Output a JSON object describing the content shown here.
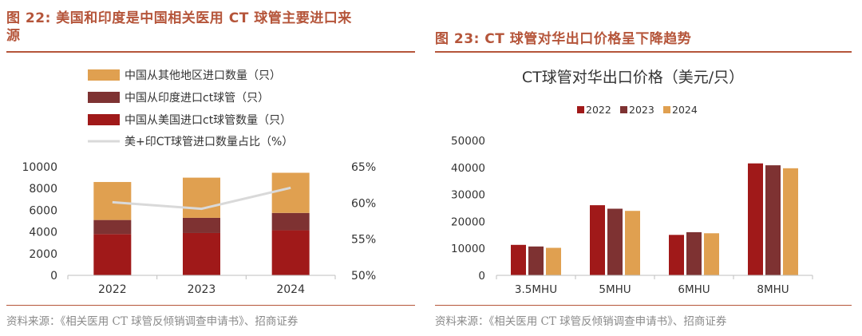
{
  "left_figure": {
    "label": "图 22:",
    "title": "美国和印度是中国相关医用 CT 球管主要进口来源",
    "title_line1": "美国和印度是中国相关医用 CT 球管主要进口来",
    "title_line2": "源",
    "source": "资料来源：《相关医用 CT 球管反倾销调查申请书》、招商证券"
  },
  "right_figure": {
    "label": "图 23:",
    "title": "CT 球管对华出口价格呈下降趋势",
    "source": "资料来源：《相关医用 CT 球管反倾销调查申请书》、招商证券"
  },
  "chart_data": [
    {
      "type": "bar",
      "stacked": true,
      "title": "",
      "categories": [
        "2022",
        "2023",
        "2024"
      ],
      "legend_position": "top",
      "series": [
        {
          "name": "中国从其他地区进口数量（只）",
          "color": "#e0a050",
          "values": [
            3500,
            3700,
            3700
          ]
        },
        {
          "name": "中国从印度进口ct球管（只）",
          "color": "#7e3232",
          "values": [
            1300,
            1400,
            1600
          ]
        },
        {
          "name": "中国从美国进口ct球管数量（只）",
          "color": "#a01919",
          "values": [
            3800,
            3900,
            4150
          ]
        }
      ],
      "line_series": {
        "name": "美+印CT球管进口数量占比（%）",
        "color": "#d9d9d9",
        "values": [
          60.1,
          59.2,
          62.1
        ]
      },
      "ylim": [
        0,
        10000
      ],
      "yticks": [
        "0",
        "2000",
        "4000",
        "6000",
        "8000",
        "10000"
      ],
      "y2lim": [
        50,
        65
      ],
      "y2ticks": [
        "50%",
        "55%",
        "60%",
        "65%"
      ]
    },
    {
      "type": "bar",
      "title": "CT球管对华出口价格（美元/只）",
      "categories": [
        "3.5MHU",
        "5MHU",
        "6MHU",
        "8MHU"
      ],
      "legend_position": "top",
      "series": [
        {
          "name": "2022",
          "color": "#a01919",
          "values": [
            11300,
            26000,
            15000,
            41500
          ]
        },
        {
          "name": "2023",
          "color": "#7e3232",
          "values": [
            10700,
            24700,
            16000,
            40800
          ]
        },
        {
          "name": "2024",
          "color": "#e0a050",
          "values": [
            10200,
            23900,
            15600,
            39700
          ]
        }
      ],
      "ylim": [
        0,
        50000
      ],
      "yticks": [
        "0",
        "10000",
        "20000",
        "30000",
        "40000",
        "50000"
      ]
    }
  ]
}
